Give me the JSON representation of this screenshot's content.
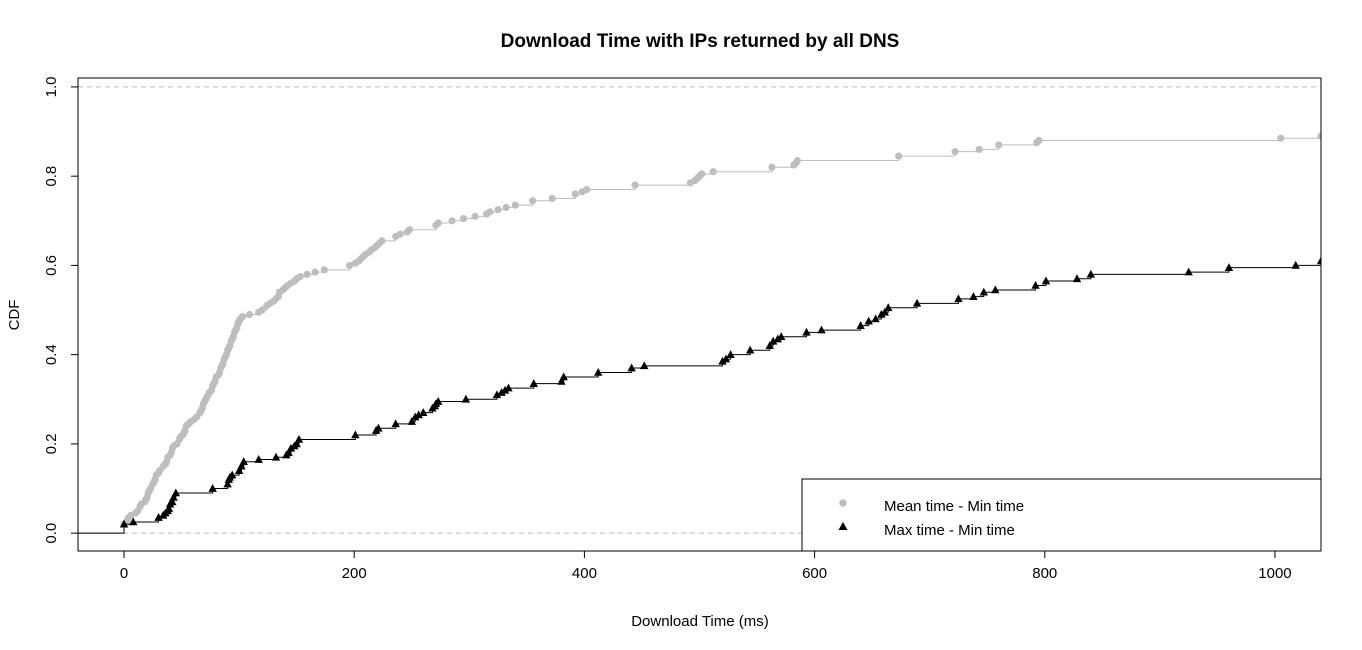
{
  "chart_data": {
    "type": "line",
    "subtype": "empirical-cdf-step",
    "title": "Download Time with IPs returned by all DNS",
    "xlabel": "Download Time (ms)",
    "ylabel": "CDF",
    "xlim": [
      -40,
      1040
    ],
    "ylim": [
      -0.04,
      1.02
    ],
    "xticks": [
      0,
      200,
      400,
      600,
      800,
      1000
    ],
    "yticks": [
      0.0,
      0.2,
      0.4,
      0.6,
      0.8,
      1.0
    ],
    "xtick_labels": [
      "0",
      "200",
      "400",
      "600",
      "800",
      "1000"
    ],
    "ytick_labels": [
      "0.0",
      "0.2",
      "0.4",
      "0.6",
      "0.8",
      "1.0"
    ],
    "reference_lines": [
      0.0,
      1.0
    ],
    "legend_position": "bottom-right",
    "series": [
      {
        "name": "Mean time - Min time",
        "color": "#bebebe",
        "marker": "circle",
        "points": [
          [
            0,
            0.02
          ],
          [
            2,
            0.025
          ],
          [
            3,
            0.03
          ],
          [
            4,
            0.035
          ],
          [
            6,
            0.04
          ],
          [
            10,
            0.045
          ],
          [
            12,
            0.05
          ],
          [
            14,
            0.06
          ],
          [
            15,
            0.065
          ],
          [
            18,
            0.07
          ],
          [
            19,
            0.075
          ],
          [
            20,
            0.08
          ],
          [
            21,
            0.09
          ],
          [
            22,
            0.095
          ],
          [
            23,
            0.1
          ],
          [
            25,
            0.11
          ],
          [
            26,
            0.115
          ],
          [
            27,
            0.12
          ],
          [
            28,
            0.13
          ],
          [
            30,
            0.135
          ],
          [
            31,
            0.14
          ],
          [
            34,
            0.15
          ],
          [
            36,
            0.155
          ],
          [
            37,
            0.16
          ],
          [
            38,
            0.17
          ],
          [
            40,
            0.175
          ],
          [
            41,
            0.18
          ],
          [
            42,
            0.19
          ],
          [
            43,
            0.195
          ],
          [
            46,
            0.2
          ],
          [
            48,
            0.21
          ],
          [
            49,
            0.215
          ],
          [
            51,
            0.22
          ],
          [
            52,
            0.225
          ],
          [
            53,
            0.23
          ],
          [
            54,
            0.24
          ],
          [
            56,
            0.245
          ],
          [
            58,
            0.25
          ],
          [
            61,
            0.255
          ],
          [
            63,
            0.26
          ],
          [
            66,
            0.27
          ],
          [
            67,
            0.275
          ],
          [
            68,
            0.28
          ],
          [
            69,
            0.29
          ],
          [
            70,
            0.295
          ],
          [
            71,
            0.3
          ],
          [
            72,
            0.305
          ],
          [
            73,
            0.31
          ],
          [
            74,
            0.315
          ],
          [
            76,
            0.32
          ],
          [
            77,
            0.33
          ],
          [
            78,
            0.335
          ],
          [
            79,
            0.34
          ],
          [
            80,
            0.35
          ],
          [
            82,
            0.355
          ],
          [
            83,
            0.36
          ],
          [
            84,
            0.37
          ],
          [
            85,
            0.375
          ],
          [
            86,
            0.38
          ],
          [
            87,
            0.39
          ],
          [
            88,
            0.395
          ],
          [
            89,
            0.4
          ],
          [
            90,
            0.41
          ],
          [
            91,
            0.415
          ],
          [
            92,
            0.42
          ],
          [
            93,
            0.43
          ],
          [
            94,
            0.435
          ],
          [
            95,
            0.44
          ],
          [
            96,
            0.45
          ],
          [
            97,
            0.455
          ],
          [
            98,
            0.46
          ],
          [
            99,
            0.47
          ],
          [
            100,
            0.475
          ],
          [
            101,
            0.48
          ],
          [
            103,
            0.485
          ],
          [
            109,
            0.49
          ],
          [
            117,
            0.495
          ],
          [
            120,
            0.5
          ],
          [
            124,
            0.51
          ],
          [
            127,
            0.515
          ],
          [
            130,
            0.52
          ],
          [
            132,
            0.525
          ],
          [
            134,
            0.53
          ],
          [
            135,
            0.54
          ],
          [
            138,
            0.545
          ],
          [
            140,
            0.55
          ],
          [
            142,
            0.555
          ],
          [
            145,
            0.56
          ],
          [
            148,
            0.565
          ],
          [
            150,
            0.57
          ],
          [
            153,
            0.575
          ],
          [
            159,
            0.58
          ],
          [
            166,
            0.585
          ],
          [
            174,
            0.59
          ],
          [
            196,
            0.6
          ],
          [
            201,
            0.605
          ],
          [
            204,
            0.61
          ],
          [
            206,
            0.615
          ],
          [
            208,
            0.62
          ],
          [
            210,
            0.625
          ],
          [
            213,
            0.63
          ],
          [
            215,
            0.635
          ],
          [
            218,
            0.64
          ],
          [
            220,
            0.645
          ],
          [
            222,
            0.65
          ],
          [
            224,
            0.655
          ],
          [
            236,
            0.665
          ],
          [
            240,
            0.67
          ],
          [
            246,
            0.675
          ],
          [
            248,
            0.68
          ],
          [
            271,
            0.69
          ],
          [
            273,
            0.695
          ],
          [
            285,
            0.7
          ],
          [
            295,
            0.705
          ],
          [
            305,
            0.71
          ],
          [
            315,
            0.715
          ],
          [
            318,
            0.72
          ],
          [
            325,
            0.725
          ],
          [
            332,
            0.73
          ],
          [
            340,
            0.735
          ],
          [
            355,
            0.745
          ],
          [
            372,
            0.75
          ],
          [
            392,
            0.76
          ],
          [
            398,
            0.765
          ],
          [
            402,
            0.77
          ],
          [
            444,
            0.78
          ],
          [
            492,
            0.785
          ],
          [
            496,
            0.79
          ],
          [
            498,
            0.795
          ],
          [
            500,
            0.8
          ],
          [
            502,
            0.805
          ],
          [
            512,
            0.81
          ],
          [
            563,
            0.82
          ],
          [
            582,
            0.825
          ],
          [
            584,
            0.83
          ],
          [
            585,
            0.835
          ],
          [
            673,
            0.845
          ],
          [
            722,
            0.855
          ],
          [
            743,
            0.86
          ],
          [
            760,
            0.87
          ],
          [
            793,
            0.875
          ],
          [
            795,
            0.88
          ],
          [
            1005,
            0.885
          ],
          [
            1040,
            0.89
          ]
        ]
      },
      {
        "name": "Max time - Min time",
        "color": "#000000",
        "marker": "triangle",
        "points": [
          [
            0,
            0.02
          ],
          [
            8,
            0.025
          ],
          [
            30,
            0.035
          ],
          [
            34,
            0.04
          ],
          [
            36,
            0.045
          ],
          [
            38,
            0.05
          ],
          [
            39,
            0.055
          ],
          [
            40,
            0.065
          ],
          [
            42,
            0.07
          ],
          [
            43,
            0.08
          ],
          [
            45,
            0.09
          ],
          [
            77,
            0.1
          ],
          [
            90,
            0.11
          ],
          [
            91,
            0.12
          ],
          [
            92,
            0.125
          ],
          [
            94,
            0.13
          ],
          [
            100,
            0.14
          ],
          [
            102,
            0.15
          ],
          [
            104,
            0.16
          ],
          [
            117,
            0.165
          ],
          [
            132,
            0.17
          ],
          [
            141,
            0.175
          ],
          [
            143,
            0.18
          ],
          [
            145,
            0.19
          ],
          [
            148,
            0.195
          ],
          [
            150,
            0.2
          ],
          [
            152,
            0.21
          ],
          [
            201,
            0.22
          ],
          [
            219,
            0.23
          ],
          [
            221,
            0.235
          ],
          [
            236,
            0.245
          ],
          [
            250,
            0.25
          ],
          [
            253,
            0.26
          ],
          [
            256,
            0.265
          ],
          [
            260,
            0.27
          ],
          [
            268,
            0.28
          ],
          [
            270,
            0.285
          ],
          [
            271,
            0.29
          ],
          [
            273,
            0.295
          ],
          [
            297,
            0.3
          ],
          [
            324,
            0.31
          ],
          [
            328,
            0.315
          ],
          [
            331,
            0.32
          ],
          [
            334,
            0.325
          ],
          [
            356,
            0.335
          ],
          [
            380,
            0.34
          ],
          [
            382,
            0.35
          ],
          [
            412,
            0.36
          ],
          [
            441,
            0.37
          ],
          [
            452,
            0.375
          ],
          [
            520,
            0.385
          ],
          [
            523,
            0.39
          ],
          [
            527,
            0.4
          ],
          [
            544,
            0.41
          ],
          [
            561,
            0.42
          ],
          [
            564,
            0.43
          ],
          [
            568,
            0.435
          ],
          [
            571,
            0.44
          ],
          [
            593,
            0.45
          ],
          [
            606,
            0.455
          ],
          [
            640,
            0.465
          ],
          [
            647,
            0.475
          ],
          [
            653,
            0.48
          ],
          [
            658,
            0.49
          ],
          [
            661,
            0.495
          ],
          [
            664,
            0.505
          ],
          [
            689,
            0.515
          ],
          [
            725,
            0.525
          ],
          [
            738,
            0.53
          ],
          [
            747,
            0.54
          ],
          [
            757,
            0.545
          ],
          [
            792,
            0.555
          ],
          [
            801,
            0.565
          ],
          [
            828,
            0.57
          ],
          [
            840,
            0.58
          ],
          [
            925,
            0.585
          ],
          [
            960,
            0.595
          ],
          [
            1018,
            0.6
          ],
          [
            1040,
            0.61
          ]
        ]
      }
    ]
  }
}
